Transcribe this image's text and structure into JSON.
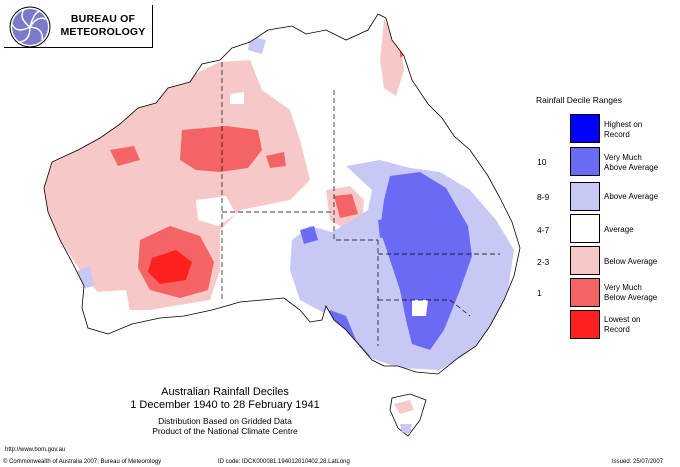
{
  "header": {
    "logo_line1": "BUREAU OF",
    "logo_line2": "METEOROLOGY"
  },
  "legend": {
    "title": "Rainfall Decile Ranges",
    "items": [
      {
        "label_line1": "Highest on",
        "label_line2": "Record",
        "decile": "",
        "color": "#0000ff"
      },
      {
        "label_line1": "Very Much",
        "label_line2": "Above Average",
        "decile": "10",
        "color": "#6a6af5"
      },
      {
        "label_line1": "Above Average",
        "label_line2": "",
        "decile": "8-9",
        "color": "#c8c8f5"
      },
      {
        "label_line1": "Average",
        "label_line2": "",
        "decile": "4-7",
        "color": "#ffffff"
      },
      {
        "label_line1": "Below Average",
        "label_line2": "",
        "decile": "2-3",
        "color": "#f7c8c8"
      },
      {
        "label_line1": "Very Much",
        "label_line2": "Below Average",
        "decile": "1",
        "color": "#f46464"
      },
      {
        "label_line1": "Lowest on",
        "label_line2": "Record",
        "decile": "",
        "color": "#ff2020"
      }
    ]
  },
  "title": {
    "line1": "Australian Rainfall Deciles",
    "line2": "1 December 1940 to 28 February 1941",
    "line3": "Distribution Based on Gridded Data",
    "line4": "Product of the National Climate Centre"
  },
  "footer": {
    "url": "http://www.bom.gov.au",
    "copyright": "© Commonwealth of Australia 2007, Bureau of Meteorology",
    "id_code": "ID code: IDCK000081.194012010402,28.LatLong",
    "issued": "Issued: 25/07/2007"
  },
  "colors": {
    "highest": "#0000ff",
    "very_much_above": "#6a6af5",
    "above": "#c8c8f5",
    "average": "#ffffff",
    "below": "#f7c8c8",
    "very_much_below": "#f46464",
    "lowest": "#ff2020"
  }
}
